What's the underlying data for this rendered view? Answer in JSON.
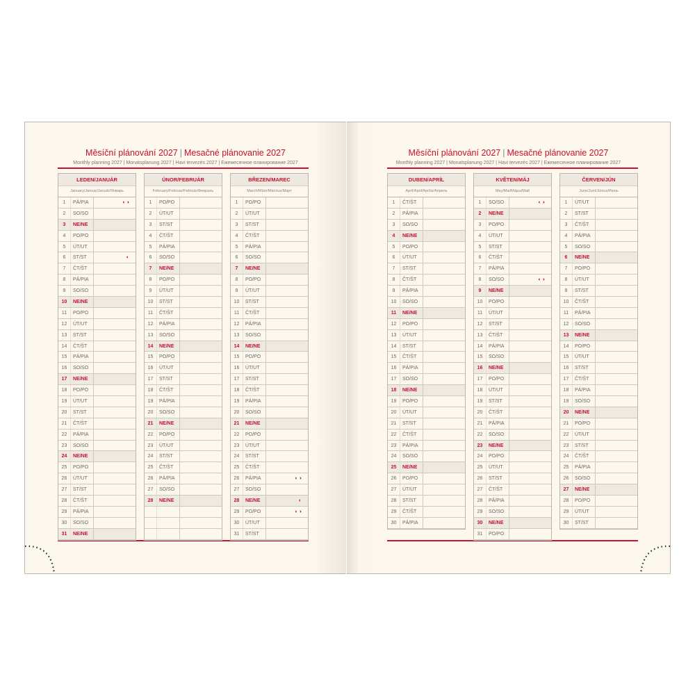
{
  "weekday_labels": [
    "PO/PO",
    "ÚT/UT",
    "ST/ST",
    "ČT/ŠT",
    "PÁ/PIA",
    "SO/SO",
    "NE/NE"
  ],
  "colors": {
    "accent": "#c8102e",
    "page": "#fdf8ee",
    "sunday_shade": "#eee9e1"
  },
  "moon_icon_glyphs": {
    "two": "◐◑",
    "one": "◐"
  },
  "pages": [
    {
      "title_cz": "Měsíční plánování 2027",
      "title_sk": "Mesačné plánovanie 2027",
      "subtitle": "Monthly planning 2027 | Monatsplanung 2027 | Havi tervezés 2027 | Ежемесячное планирование 2027",
      "months": [
        {
          "name": "LEDEN/JANUÁR",
          "subtitle": "January/Januar/Január/Январь",
          "first_weekday": 4,
          "days": 31,
          "rows": 31,
          "moons": {
            "1": "two",
            "6": "one"
          }
        },
        {
          "name": "ÚNOR/FEBRUÁR",
          "subtitle": "February/Februar/Február/Февраль",
          "first_weekday": 0,
          "days": 28,
          "rows": 31,
          "moons": {}
        },
        {
          "name": "BŘEZEN/MAREC",
          "subtitle": "March/März/Március/Март",
          "first_weekday": 0,
          "days": 31,
          "rows": 31,
          "moons": {
            "26": "two",
            "28": "one",
            "29": "two"
          }
        }
      ]
    },
    {
      "title_cz": "Měsíční plánování 2027",
      "title_sk": "Mesačné plánovanie 2027",
      "subtitle": "Monthly planning 2027 | Monatsplanung 2027 | Havi tervezés 2027 | Ежемесячное планирование 2027",
      "months": [
        {
          "name": "DUBEN/APRÍL",
          "subtitle": "April/April/Április/Апрель",
          "first_weekday": 3,
          "days": 30,
          "rows": 30,
          "moons": {}
        },
        {
          "name": "KVĚTEN/MÁJ",
          "subtitle": "May/Mai/Május/Май",
          "first_weekday": 5,
          "days": 31,
          "rows": 31,
          "moons": {
            "1": "two",
            "8": "two"
          }
        },
        {
          "name": "ČERVEN/JÚN",
          "subtitle": "June/Juni/Június/Июнь",
          "first_weekday": 1,
          "days": 30,
          "rows": 30,
          "moons": {}
        }
      ]
    }
  ]
}
